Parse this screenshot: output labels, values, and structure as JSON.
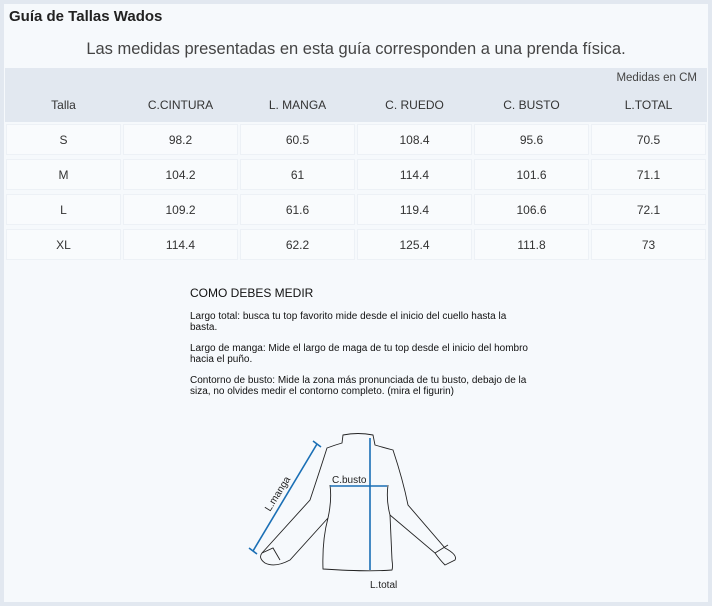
{
  "title": "Guía de Tallas Wados",
  "subtitle": "Las medidas presentadas en esta guía corresponden a una prenda física.",
  "unit_label": "Medidas en CM",
  "table": {
    "headers": [
      "Talla",
      "C.CINTURA",
      "L. MANGA",
      "C. RUEDO",
      "C. BUSTO",
      "L.TOTAL"
    ],
    "rows": [
      [
        "S",
        "98.2",
        "60.5",
        "108.4",
        "95.6",
        "70.5"
      ],
      [
        "M",
        "104.2",
        "61",
        "114.4",
        "101.6",
        "71.1"
      ],
      [
        "L",
        "109.2",
        "61.6",
        "119.4",
        "106.6",
        "72.1"
      ],
      [
        "XL",
        "114.4",
        "62.2",
        "125.4",
        "111.8",
        "73"
      ]
    ]
  },
  "instructions": {
    "heading": "COMO DEBES MEDIR",
    "items": [
      "Largo total: busca tu top favorito mide desde el inicio del cuello hasta la basta.",
      "Largo de manga: Mide el largo de maga de tu top desde el inicio del hombro hacia el puño.",
      "Contorno de busto: Mide la zona más pronunciada de tu busto, debajo de la siza, no olvides medir el contorno completo. (mira el figurin)"
    ]
  },
  "figure": {
    "label_sleeve": "L.manga",
    "label_bust": "C.busto",
    "label_total": "L.total",
    "accent": "#1a6fb5"
  }
}
